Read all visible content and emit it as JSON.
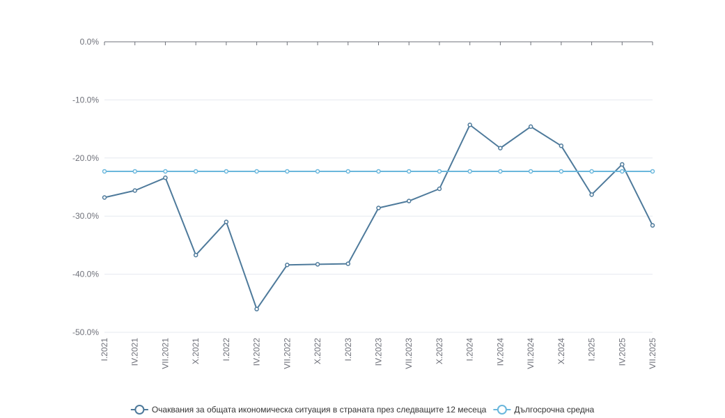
{
  "chart_data": {
    "type": "line",
    "title": "",
    "xlabel": "",
    "ylabel": "",
    "categories": [
      "I.2021",
      "IV.2021",
      "VII.2021",
      "X.2021",
      "I.2022",
      "IV.2022",
      "VII.2022",
      "X.2022",
      "I.2023",
      "IV.2023",
      "VII.2023",
      "X.2023",
      "I.2024",
      "IV.2024",
      "VII.2024",
      "X.2024",
      "I.2025",
      "IV.2025",
      "VII.2025"
    ],
    "ylim": [
      -50,
      0
    ],
    "yticks": [
      0,
      -10,
      -20,
      -30,
      -40,
      -50
    ],
    "ytick_labels": [
      "0.0%",
      "-10.0%",
      "-20.0%",
      "-30.0%",
      "-40.0%",
      "-50.0%"
    ],
    "grid": true,
    "legend_position": "bottom",
    "series": [
      {
        "name": "Очаквания за общата икономическа ситуация в страната през следващите 12 месеца",
        "color": "#4e7a9b",
        "values": [
          -26.8,
          -25.6,
          -23.4,
          -36.7,
          -31.0,
          -46.0,
          -38.4,
          -38.3,
          -38.2,
          -28.6,
          -27.4,
          -25.3,
          -14.3,
          -18.3,
          -14.6,
          -17.9,
          -26.3,
          -21.1,
          -31.6
        ]
      },
      {
        "name": "Дългосрочна средна",
        "color": "#6ab7dc",
        "values": [
          -22.3,
          -22.3,
          -22.3,
          -22.3,
          -22.3,
          -22.3,
          -22.3,
          -22.3,
          -22.3,
          -22.3,
          -22.3,
          -22.3,
          -22.3,
          -22.3,
          -22.3,
          -22.3,
          -22.3,
          -22.3,
          -22.3
        ]
      }
    ]
  }
}
